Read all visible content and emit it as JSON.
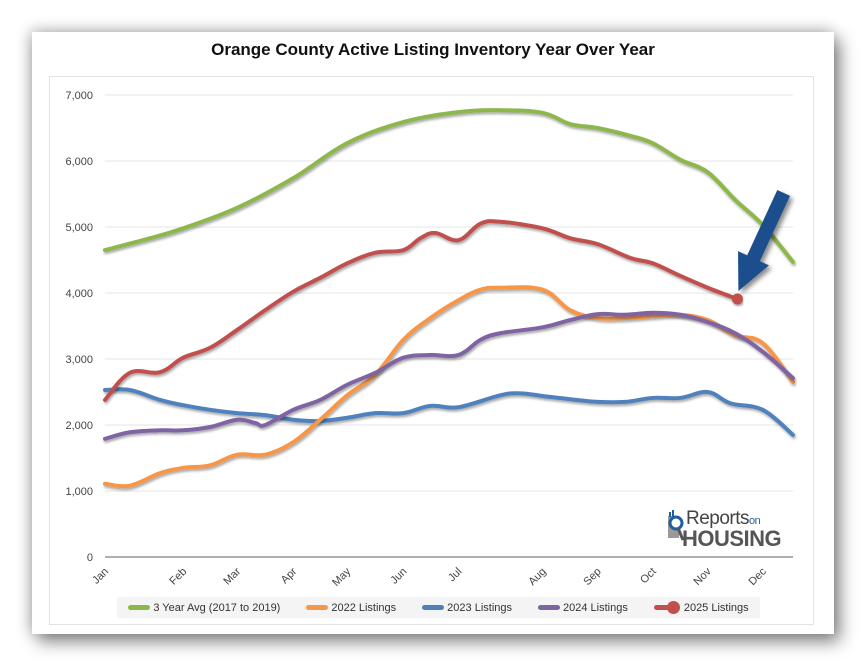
{
  "chart_data": {
    "type": "line",
    "title": "Orange County Active Listing Inventory Year Over Year",
    "xlabel": "",
    "ylabel": "",
    "ylim": [
      0,
      7000
    ],
    "yticks": [
      0,
      1000,
      2000,
      3000,
      4000,
      5000,
      6000,
      7000
    ],
    "ytick_labels": [
      "0",
      "1,000",
      "2,000",
      "3,000",
      "4,000",
      "5,000",
      "6,000",
      "7,000"
    ],
    "grid": true,
    "legend_position": "bottom",
    "x_unit": "month (Jan=0 ... Dec=11, fractional = within month)",
    "xtick_labels": [
      "Jan",
      "Feb",
      "Mar",
      "Apr",
      "May",
      "Jun",
      "Jul",
      "Aug",
      "Sep",
      "Oct",
      "Nov",
      "Dec"
    ],
    "xtick_positions": [
      0,
      1.42,
      2.4,
      3.42,
      4.4,
      5.42,
      6.42,
      7.95,
      8.95,
      9.95,
      10.95,
      11.95
    ],
    "xlim": [
      0,
      12.5
    ],
    "series": [
      {
        "name": "3 Year Avg (2017 to 2019)",
        "color": "#8db64c",
        "x": [
          0,
          0.82,
          1.42,
          2.4,
          3.42,
          4.4,
          5.42,
          6.42,
          7.18,
          7.95,
          8.45,
          8.95,
          9.55,
          9.95,
          10.45,
          10.95,
          11.45,
          11.95,
          12.5
        ],
        "values": [
          4650,
          4830,
          4980,
          5290,
          5740,
          6270,
          6590,
          6740,
          6770,
          6730,
          6560,
          6500,
          6380,
          6270,
          6020,
          5830,
          5410,
          5030,
          4470
        ]
      },
      {
        "name": "2022 Listings",
        "color": "#f79646",
        "x": [
          0,
          0.45,
          1.0,
          1.42,
          1.91,
          2.4,
          2.91,
          3.42,
          3.91,
          4.4,
          4.91,
          5.42,
          5.91,
          6.42,
          6.82,
          7.18,
          7.95,
          8.45,
          8.95,
          9.45,
          9.95,
          10.45,
          10.95,
          11.45,
          11.95,
          12.5
        ],
        "values": [
          1110,
          1080,
          1270,
          1350,
          1390,
          1550,
          1550,
          1740,
          2080,
          2450,
          2760,
          3290,
          3620,
          3890,
          4050,
          4080,
          4050,
          3740,
          3620,
          3620,
          3650,
          3670,
          3590,
          3360,
          3240,
          2650
        ]
      },
      {
        "name": "2023 Listings",
        "color": "#4f81bd",
        "x": [
          0,
          0.45,
          1.0,
          1.42,
          1.91,
          2.4,
          2.91,
          3.42,
          3.91,
          4.4,
          4.91,
          5.42,
          5.91,
          6.42,
          7.18,
          7.55,
          7.95,
          8.45,
          8.95,
          9.45,
          9.95,
          10.45,
          10.95,
          11.36,
          11.95,
          12.5
        ],
        "values": [
          2530,
          2530,
          2380,
          2300,
          2230,
          2180,
          2150,
          2080,
          2060,
          2110,
          2180,
          2180,
          2290,
          2270,
          2450,
          2480,
          2440,
          2390,
          2350,
          2350,
          2410,
          2410,
          2500,
          2330,
          2230,
          1850
        ]
      },
      {
        "name": "2024 Listings",
        "color": "#8064a2",
        "x": [
          0,
          0.45,
          1.0,
          1.42,
          1.91,
          2.4,
          2.73,
          2.91,
          3.42,
          3.91,
          4.4,
          4.91,
          5.42,
          5.91,
          6.42,
          6.82,
          7.18,
          7.95,
          8.45,
          8.95,
          9.45,
          9.95,
          10.45,
          10.95,
          11.45,
          11.95,
          12.5
        ],
        "values": [
          1790,
          1890,
          1920,
          1920,
          1970,
          2080,
          2030,
          2000,
          2230,
          2380,
          2610,
          2790,
          3020,
          3060,
          3060,
          3290,
          3390,
          3480,
          3590,
          3680,
          3670,
          3700,
          3670,
          3560,
          3390,
          3110,
          2710
        ]
      },
      {
        "name": "2025 Listings",
        "color": "#c0504d",
        "end_marker": true,
        "x": [
          0,
          0.45,
          1.0,
          1.42,
          1.91,
          2.4,
          2.91,
          3.42,
          3.91,
          4.4,
          4.91,
          5.42,
          5.73,
          6.0,
          6.42,
          6.82,
          7.18,
          7.95,
          8.45,
          8.95,
          9.55,
          9.95,
          10.45,
          10.95,
          11.49
        ],
        "values": [
          2380,
          2790,
          2800,
          3020,
          3170,
          3440,
          3740,
          4020,
          4230,
          4450,
          4610,
          4650,
          4830,
          4910,
          4800,
          5050,
          5080,
          4980,
          4830,
          4740,
          4530,
          4450,
          4260,
          4080,
          3910
        ]
      }
    ],
    "annotations": [
      {
        "type": "arrow",
        "color": "#1f4e8c",
        "points_to": "2025 Listings latest value"
      }
    ]
  },
  "logo": {
    "reports": "Reports",
    "on": "on",
    "housing": "HOUSING"
  }
}
